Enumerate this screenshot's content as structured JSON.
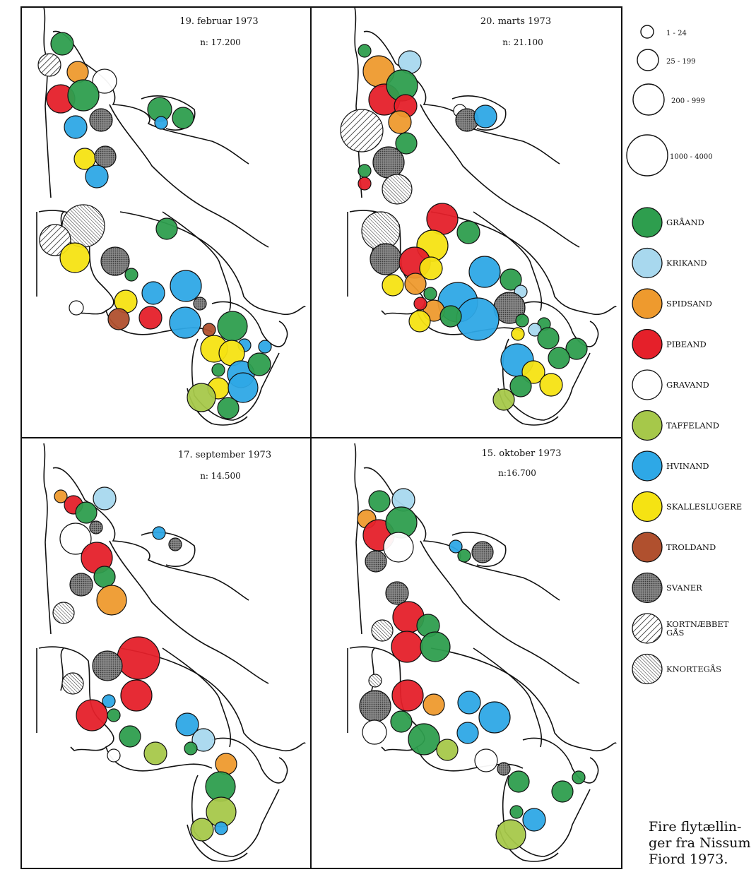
{
  "panels": [
    {
      "date": "19. februar  1973",
      "count": "n: 17.200",
      "circles": [
        [
          "graaand",
          88,
          62,
          16
        ],
        [
          "kortnaebbet",
          70,
          92,
          16
        ],
        [
          "spidsand",
          110,
          102,
          15
        ],
        [
          "gravand",
          148,
          115,
          17
        ],
        [
          "pibeand",
          86,
          140,
          20
        ],
        [
          "graaand",
          118,
          135,
          22
        ],
        [
          "hvinand",
          107,
          180,
          16
        ],
        [
          "svaner",
          143,
          170,
          16
        ],
        [
          "graaand",
          226,
          155,
          17
        ],
        [
          "graaand",
          259,
          167,
          15
        ],
        [
          "hvinand",
          228,
          174,
          9
        ],
        [
          "skallesluger",
          120,
          225,
          15
        ],
        [
          "svaner",
          149,
          222,
          15
        ],
        [
          "hvinand",
          137,
          250,
          16
        ],
        [
          "knortegaas",
          118,
          320,
          30
        ],
        [
          "kortnaebbet",
          78,
          340,
          22
        ],
        [
          "skallesluger",
          106,
          365,
          21
        ],
        [
          "graaand",
          236,
          324,
          15
        ],
        [
          "svaner",
          163,
          370,
          20
        ],
        [
          "graaand",
          186,
          389,
          9
        ],
        [
          "hvinand",
          263,
          405,
          22
        ],
        [
          "hvinand",
          217,
          415,
          16
        ],
        [
          "skallesluger",
          178,
          427,
          16
        ],
        [
          "gravand",
          108,
          436,
          10
        ],
        [
          "troldand",
          168,
          452,
          15
        ],
        [
          "pibeand",
          213,
          450,
          16
        ],
        [
          "hvinand",
          262,
          457,
          22
        ],
        [
          "svaner",
          283,
          430,
          9
        ],
        [
          "troldand",
          296,
          467,
          9
        ],
        [
          "graaand",
          329,
          462,
          21
        ],
        [
          "skallesluger",
          303,
          494,
          19
        ],
        [
          "hvinand",
          346,
          489,
          9
        ],
        [
          "hvinand",
          375,
          491,
          9
        ],
        [
          "skallesluger",
          328,
          500,
          18
        ],
        [
          "graaand",
          309,
          524,
          9
        ],
        [
          "hvinand",
          341,
          530,
          19
        ],
        [
          "graaand",
          367,
          516,
          16
        ],
        [
          "skallesluger",
          309,
          550,
          15
        ],
        [
          "taffeland",
          285,
          563,
          20
        ],
        [
          "hvinand",
          344,
          549,
          21
        ],
        [
          "graaand",
          323,
          578,
          15
        ]
      ]
    },
    {
      "date": "20. marts  1973",
      "count": "n: 21.100",
      "circles": [
        [
          "graaand",
          516,
          72,
          9
        ],
        [
          "spidsand",
          536,
          101,
          22
        ],
        [
          "krikand",
          580,
          88,
          16
        ],
        [
          "pibeand",
          544,
          141,
          22
        ],
        [
          "graaand",
          569,
          121,
          22
        ],
        [
          "pibeand",
          574,
          150,
          16
        ],
        [
          "gravand",
          651,
          157,
          9
        ],
        [
          "svaner",
          661,
          170,
          16
        ],
        [
          "hvinand",
          687,
          165,
          16
        ],
        [
          "kortnaebbet",
          512,
          185,
          30
        ],
        [
          "spidsand",
          566,
          173,
          16
        ],
        [
          "graaand",
          575,
          203,
          15
        ],
        [
          "graaand",
          516,
          242,
          9
        ],
        [
          "svaner",
          550,
          230,
          22
        ],
        [
          "pibeand",
          516,
          260,
          9
        ],
        [
          "knortegaas",
          562,
          268,
          21
        ],
        [
          "pibeand",
          626,
          310,
          22
        ],
        [
          "knortegaas",
          539,
          327,
          27
        ],
        [
          "graaand",
          663,
          329,
          16
        ],
        [
          "skallesluger",
          612,
          348,
          22
        ],
        [
          "svaner",
          546,
          367,
          22
        ],
        [
          "pibeand",
          587,
          372,
          22
        ],
        [
          "skallesluger",
          610,
          380,
          16
        ],
        [
          "hvinand",
          686,
          385,
          22
        ],
        [
          "graaand",
          723,
          396,
          15
        ],
        [
          "skallesluger",
          556,
          404,
          15
        ],
        [
          "spidsand",
          588,
          402,
          15
        ],
        [
          "graaand",
          609,
          416,
          9
        ],
        [
          "krikand",
          737,
          413,
          9
        ],
        [
          "hvinand",
          648,
          428,
          28
        ],
        [
          "svaner",
          721,
          436,
          22
        ],
        [
          "hvinand",
          676,
          452,
          30
        ],
        [
          "spidsand",
          614,
          440,
          15
        ],
        [
          "pibeand",
          595,
          430,
          9
        ],
        [
          "skallesluger",
          594,
          455,
          15
        ],
        [
          "graaand",
          638,
          448,
          15
        ],
        [
          "graaand",
          739,
          454,
          9
        ],
        [
          "graaand",
          770,
          459,
          9
        ],
        [
          "krikand",
          757,
          467,
          9
        ],
        [
          "skallesluger",
          733,
          473,
          9
        ],
        [
          "graaand",
          776,
          479,
          15
        ],
        [
          "graaand",
          816,
          494,
          15
        ],
        [
          "hvinand",
          732,
          510,
          23
        ],
        [
          "skallesluger",
          755,
          527,
          16
        ],
        [
          "graaand",
          791,
          507,
          15
        ],
        [
          "skallesluger",
          780,
          545,
          16
        ],
        [
          "graaand",
          737,
          547,
          15
        ],
        [
          "taffeland",
          713,
          566,
          15
        ]
      ]
    },
    {
      "date": "17. september  1973",
      "count": "n: 14.500",
      "circles": [
        [
          "spidsand",
          86,
          703,
          9
        ],
        [
          "pibeand",
          104,
          715,
          13
        ],
        [
          "krikand",
          148,
          706,
          16
        ],
        [
          "graaand",
          122,
          726,
          15
        ],
        [
          "gravand",
          107,
          763,
          22
        ],
        [
          "svaner",
          136,
          747,
          9
        ],
        [
          "hvinand",
          225,
          755,
          9
        ],
        [
          "svaner",
          248,
          771,
          9
        ],
        [
          "pibeand",
          137,
          790,
          22
        ],
        [
          "svaner",
          115,
          828,
          16
        ],
        [
          "graaand",
          148,
          817,
          15
        ],
        [
          "spidsand",
          158,
          850,
          21
        ],
        [
          "knortegaas",
          90,
          868,
          15
        ],
        [
          "pibeand",
          196,
          932,
          30
        ],
        [
          "svaner",
          152,
          943,
          21
        ],
        [
          "knortegaas",
          103,
          968,
          15
        ],
        [
          "pibeand",
          193,
          985,
          22
        ],
        [
          "hvinand",
          154,
          993,
          9
        ],
        [
          "pibeand",
          130,
          1013,
          22
        ],
        [
          "graaand",
          161,
          1013,
          9
        ],
        [
          "hvinand",
          265,
          1026,
          16
        ],
        [
          "krikand",
          288,
          1048,
          16
        ],
        [
          "graaand",
          184,
          1043,
          15
        ],
        [
          "graaand",
          270,
          1060,
          9
        ],
        [
          "taffeland",
          220,
          1067,
          16
        ],
        [
          "gravand",
          161,
          1070,
          9
        ],
        [
          "spidsand",
          320,
          1082,
          15
        ],
        [
          "graaand",
          312,
          1114,
          21
        ],
        [
          "taffeland",
          313,
          1150,
          21
        ],
        [
          "taffeland",
          286,
          1175,
          16
        ],
        [
          "hvinand",
          313,
          1173,
          9
        ]
      ]
    },
    {
      "date": "15. oktober  1973",
      "count": "n:16.700",
      "circles": [
        [
          "graaand",
          537,
          710,
          15
        ],
        [
          "krikand",
          571,
          708,
          16
        ],
        [
          "spidsand",
          519,
          735,
          13
        ],
        [
          "pibeand",
          536,
          758,
          22
        ],
        [
          "graaand",
          568,
          740,
          22
        ],
        [
          "gravand",
          564,
          775,
          21
        ],
        [
          "hvinand",
          645,
          774,
          9
        ],
        [
          "graaand",
          657,
          787,
          9
        ],
        [
          "svaner",
          683,
          782,
          15
        ],
        [
          "svaner",
          532,
          795,
          15
        ],
        [
          "svaner",
          562,
          840,
          16
        ],
        [
          "pibeand",
          578,
          874,
          22
        ],
        [
          "graaand",
          606,
          886,
          16
        ],
        [
          "knortegaas",
          541,
          893,
          15
        ],
        [
          "pibeand",
          576,
          916,
          22
        ],
        [
          "graaand",
          616,
          916,
          21
        ],
        [
          "knortegaas",
          531,
          964,
          9
        ],
        [
          "pibeand",
          577,
          985,
          22
        ],
        [
          "spidsand",
          614,
          998,
          15
        ],
        [
          "svaner",
          531,
          1000,
          22
        ],
        [
          "hvinand",
          664,
          995,
          16
        ],
        [
          "hvinand",
          700,
          1016,
          22
        ],
        [
          "graaand",
          568,
          1022,
          15
        ],
        [
          "gravand",
          530,
          1037,
          17
        ],
        [
          "hvinand",
          662,
          1038,
          15
        ],
        [
          "graaand",
          600,
          1047,
          22
        ],
        [
          "taffeland",
          633,
          1062,
          15
        ],
        [
          "gravand",
          688,
          1077,
          16
        ],
        [
          "svaner",
          713,
          1089,
          9
        ],
        [
          "graaand",
          734,
          1107,
          15
        ],
        [
          "graaand",
          796,
          1121,
          15
        ],
        [
          "graaand",
          819,
          1101,
          9
        ],
        [
          "graaand",
          731,
          1150,
          9
        ],
        [
          "hvinand",
          756,
          1161,
          16
        ],
        [
          "taffeland",
          723,
          1182,
          21
        ]
      ]
    }
  ],
  "size_legend": [
    {
      "label": "1 - 24",
      "r": 9
    },
    {
      "label": "25 - 199",
      "r": 15
    },
    {
      "label": "200 - 999",
      "r": 22
    },
    {
      "label": "1000 - 4000",
      "r": 29
    }
  ],
  "species_legend": [
    {
      "id": "graaand",
      "label": "GRÅAND",
      "color": "#2e9e4e",
      "pattern": ""
    },
    {
      "id": "krikand",
      "label": "KRIKAND",
      "color": "#a8d8ee",
      "pattern": ""
    },
    {
      "id": "spidsand",
      "label": "SPIDSAND",
      "color": "#ee9a2e",
      "pattern": ""
    },
    {
      "id": "pibeand",
      "label": "PIBEAND",
      "color": "#e5202a",
      "pattern": ""
    },
    {
      "id": "gravand",
      "label": "GRAVAND",
      "color": "#ffffff",
      "pattern": ""
    },
    {
      "id": "taffeland",
      "label": "TAFFELAND",
      "color": "#a6c84a",
      "pattern": ""
    },
    {
      "id": "hvinand",
      "label": "HVINAND",
      "color": "#2ea8e6",
      "pattern": ""
    },
    {
      "id": "skallesluger",
      "label": "SKALLESLUGERE",
      "color": "#f5e313",
      "pattern": ""
    },
    {
      "id": "troldand",
      "label": "TROLDAND",
      "color": "#b0502e",
      "pattern": ""
    },
    {
      "id": "svaner",
      "label": "SVANER",
      "color": "#7c7c7c",
      "pattern": "dots"
    },
    {
      "id": "kortnaebbet",
      "label": "KORTNÆBBET\nGÅS",
      "color": "#ffffff",
      "pattern": "hatch-wide"
    },
    {
      "id": "knortegaas",
      "label": "KNORTEGÅS",
      "color": "#ffffff",
      "pattern": "hatch-fine"
    }
  ],
  "caption": [
    "Fire flytællin-",
    "ger fra Nissum",
    "Fiord 1973."
  ]
}
